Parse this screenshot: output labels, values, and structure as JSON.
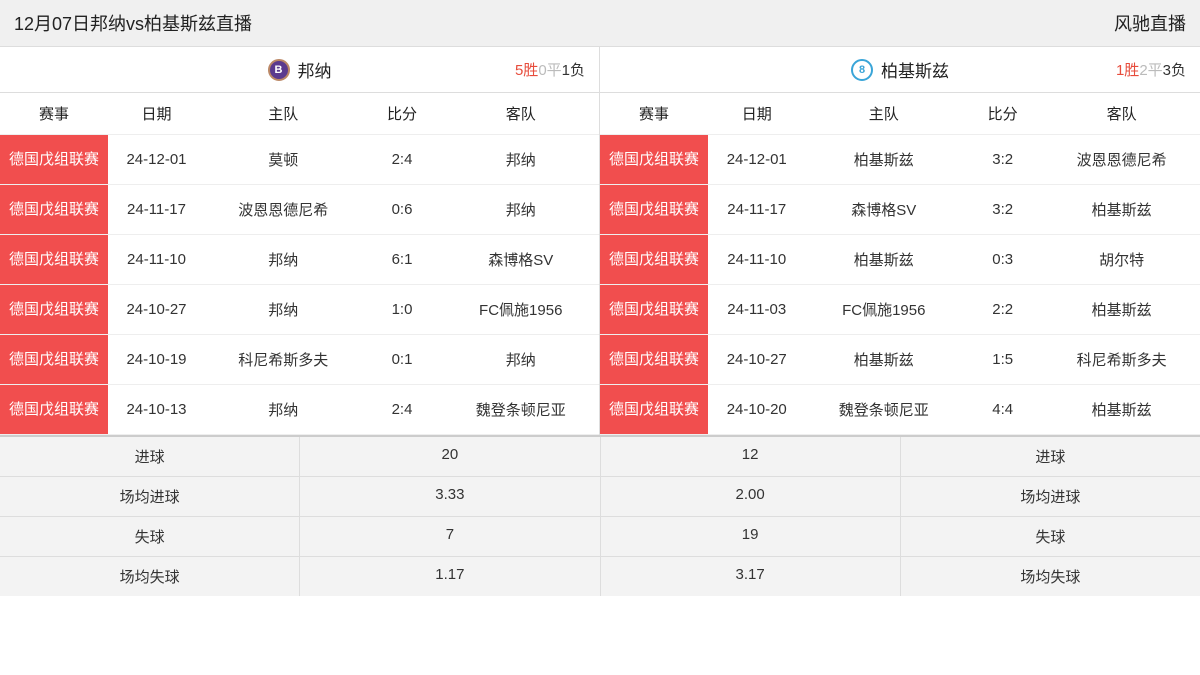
{
  "header": {
    "title": "12月07日邦纳vs柏基斯兹直播",
    "brand": "风驰直播"
  },
  "colors": {
    "comp_bg": "#f14e4e",
    "win": "#e74c3c",
    "draw": "#bbbbbb",
    "loss": "#333333",
    "badge_left": "#5b3a8e",
    "badge_right": "#3aa5d8"
  },
  "columns": {
    "competition": "赛事",
    "date": "日期",
    "home": "主队",
    "score": "比分",
    "away": "客队"
  },
  "left": {
    "team": "邦纳",
    "badge_text": "B",
    "record": {
      "win": "5胜",
      "draw": "0平",
      "loss": "1负"
    },
    "rows": [
      {
        "comp": "德国戊组联赛",
        "date": "24-12-01",
        "home": "莫顿",
        "score": "2:4",
        "away": "邦纳"
      },
      {
        "comp": "德国戊组联赛",
        "date": "24-11-17",
        "home": "波恩恩德尼希",
        "score": "0:6",
        "away": "邦纳"
      },
      {
        "comp": "德国戊组联赛",
        "date": "24-11-10",
        "home": "邦纳",
        "score": "6:1",
        "away": "森博格SV"
      },
      {
        "comp": "德国戊组联赛",
        "date": "24-10-27",
        "home": "邦纳",
        "score": "1:0",
        "away": "FC佩施1956"
      },
      {
        "comp": "德国戊组联赛",
        "date": "24-10-19",
        "home": "科尼希斯多夫",
        "score": "0:1",
        "away": "邦纳"
      },
      {
        "comp": "德国戊组联赛",
        "date": "24-10-13",
        "home": "邦纳",
        "score": "2:4",
        "away": "魏登条顿尼亚"
      }
    ]
  },
  "right": {
    "team": "柏基斯兹",
    "badge_text": "8",
    "record": {
      "win": "1胜",
      "draw": "2平",
      "loss": "3负"
    },
    "rows": [
      {
        "comp": "德国戊组联赛",
        "date": "24-12-01",
        "home": "柏基斯兹",
        "score": "3:2",
        "away": "波恩恩德尼希"
      },
      {
        "comp": "德国戊组联赛",
        "date": "24-11-17",
        "home": "森博格SV",
        "score": "3:2",
        "away": "柏基斯兹"
      },
      {
        "comp": "德国戊组联赛",
        "date": "24-11-10",
        "home": "柏基斯兹",
        "score": "0:3",
        "away": "胡尔特"
      },
      {
        "comp": "德国戊组联赛",
        "date": "24-11-03",
        "home": "FC佩施1956",
        "score": "2:2",
        "away": "柏基斯兹"
      },
      {
        "comp": "德国戊组联赛",
        "date": "24-10-27",
        "home": "柏基斯兹",
        "score": "1:5",
        "away": "科尼希斯多夫"
      },
      {
        "comp": "德国戊组联赛",
        "date": "24-10-20",
        "home": "魏登条顿尼亚",
        "score": "4:4",
        "away": "柏基斯兹"
      }
    ]
  },
  "stats": {
    "labels": {
      "goals": "进球",
      "avg_goals": "场均进球",
      "conceded": "失球",
      "avg_conceded": "场均失球"
    },
    "left": {
      "goals": "20",
      "avg_goals": "3.33",
      "conceded": "7",
      "avg_conceded": "1.17"
    },
    "right": {
      "goals": "12",
      "avg_goals": "2.00",
      "conceded": "19",
      "avg_conceded": "3.17"
    }
  }
}
